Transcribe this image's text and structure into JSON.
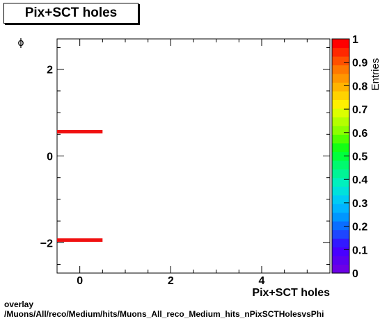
{
  "chart_data": {
    "type": "heatmap",
    "title": "Pix+SCT holes",
    "xlabel": "Pix+SCT holes",
    "ylabel": "ϕ",
    "zlabel": "Entries",
    "xlim": [
      -0.5,
      5.5
    ],
    "ylim": [
      -2.7,
      2.7
    ],
    "zlim": [
      0,
      1
    ],
    "x_ticks": [
      0,
      2,
      4
    ],
    "y_ticks": [
      2,
      0,
      -2
    ],
    "y_tick_labels": [
      "2",
      "0",
      "−2"
    ],
    "z_ticks": [
      "0",
      "0.1",
      "0.2",
      "0.3",
      "0.4",
      "0.5",
      "0.6",
      "0.7",
      "0.8",
      "0.9",
      "1"
    ],
    "cells": [
      {
        "x": [
          -0.5,
          0.5
        ],
        "y": [
          0.52,
          0.6
        ],
        "value": 1
      },
      {
        "x": [
          -0.5,
          0.5
        ],
        "y": [
          -1.98,
          -1.9
        ],
        "value": 1
      }
    ],
    "colorbar": [
      "#6c00e6",
      "#5a00f0",
      "#4800ff",
      "#3219ff",
      "#1e46ff",
      "#0a6eff",
      "#0096ff",
      "#00b4ff",
      "#00cbf5",
      "#00e1dc",
      "#00f0be",
      "#00f596",
      "#00fa6e",
      "#00ff3c",
      "#14ff14",
      "#50ff00",
      "#8cff00",
      "#b4ff00",
      "#dcff00",
      "#fff000",
      "#ffd200",
      "#ffb400",
      "#ff9600",
      "#ff7800",
      "#ff5000",
      "#ff2800",
      "#ff0000"
    ],
    "cell_color": "#f01010",
    "grid": false
  },
  "footer": {
    "line1": "overlay",
    "line2": "/Muons/All/reco/Medium/hits/Muons_All_reco_Medium_hits_nPixSCTHolesvsPhi"
  }
}
